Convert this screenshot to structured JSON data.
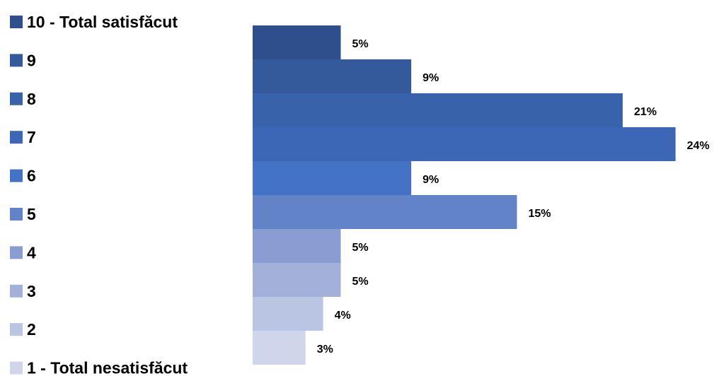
{
  "chart_data": {
    "type": "bar",
    "orientation": "horizontal",
    "title": "",
    "xlabel": "",
    "ylabel": "",
    "xlim": [
      0,
      24
    ],
    "grid": false,
    "legend_position": "left",
    "categories": [
      "10 - Total satisfăcut",
      "9",
      "8",
      "7",
      "6",
      "5",
      "4",
      "3",
      "2",
      "1 - Total nesatisfăcut"
    ],
    "values": [
      5,
      9,
      21,
      24,
      9,
      15,
      5,
      5,
      4,
      3
    ],
    "value_labels": [
      "5%",
      "9%",
      "21%",
      "24%",
      "9%",
      "15%",
      "5%",
      "5%",
      "4%",
      "3%"
    ],
    "colors": [
      "#2e4f8c",
      "#345a9c",
      "#3862aa",
      "#3c67b6",
      "#4472c4",
      "#6383c9",
      "#8a9dd2",
      "#a2b0da",
      "#bac5e3",
      "#cfd5eb"
    ],
    "legend": [
      {
        "label": "10 - Total satisfăcut",
        "color": "#2e4f8c"
      },
      {
        "label": "9",
        "color": "#345a9c"
      },
      {
        "label": "8",
        "color": "#3862aa"
      },
      {
        "label": "7",
        "color": "#3c67b6"
      },
      {
        "label": "6",
        "color": "#4472c4"
      },
      {
        "label": "5",
        "color": "#6383c9"
      },
      {
        "label": "4",
        "color": "#8a9dd2"
      },
      {
        "label": "3",
        "color": "#a2b0da"
      },
      {
        "label": "2",
        "color": "#bac5e3"
      },
      {
        "label": "1 - Total nesatisfăcut",
        "color": "#cfd5eb"
      }
    ]
  }
}
